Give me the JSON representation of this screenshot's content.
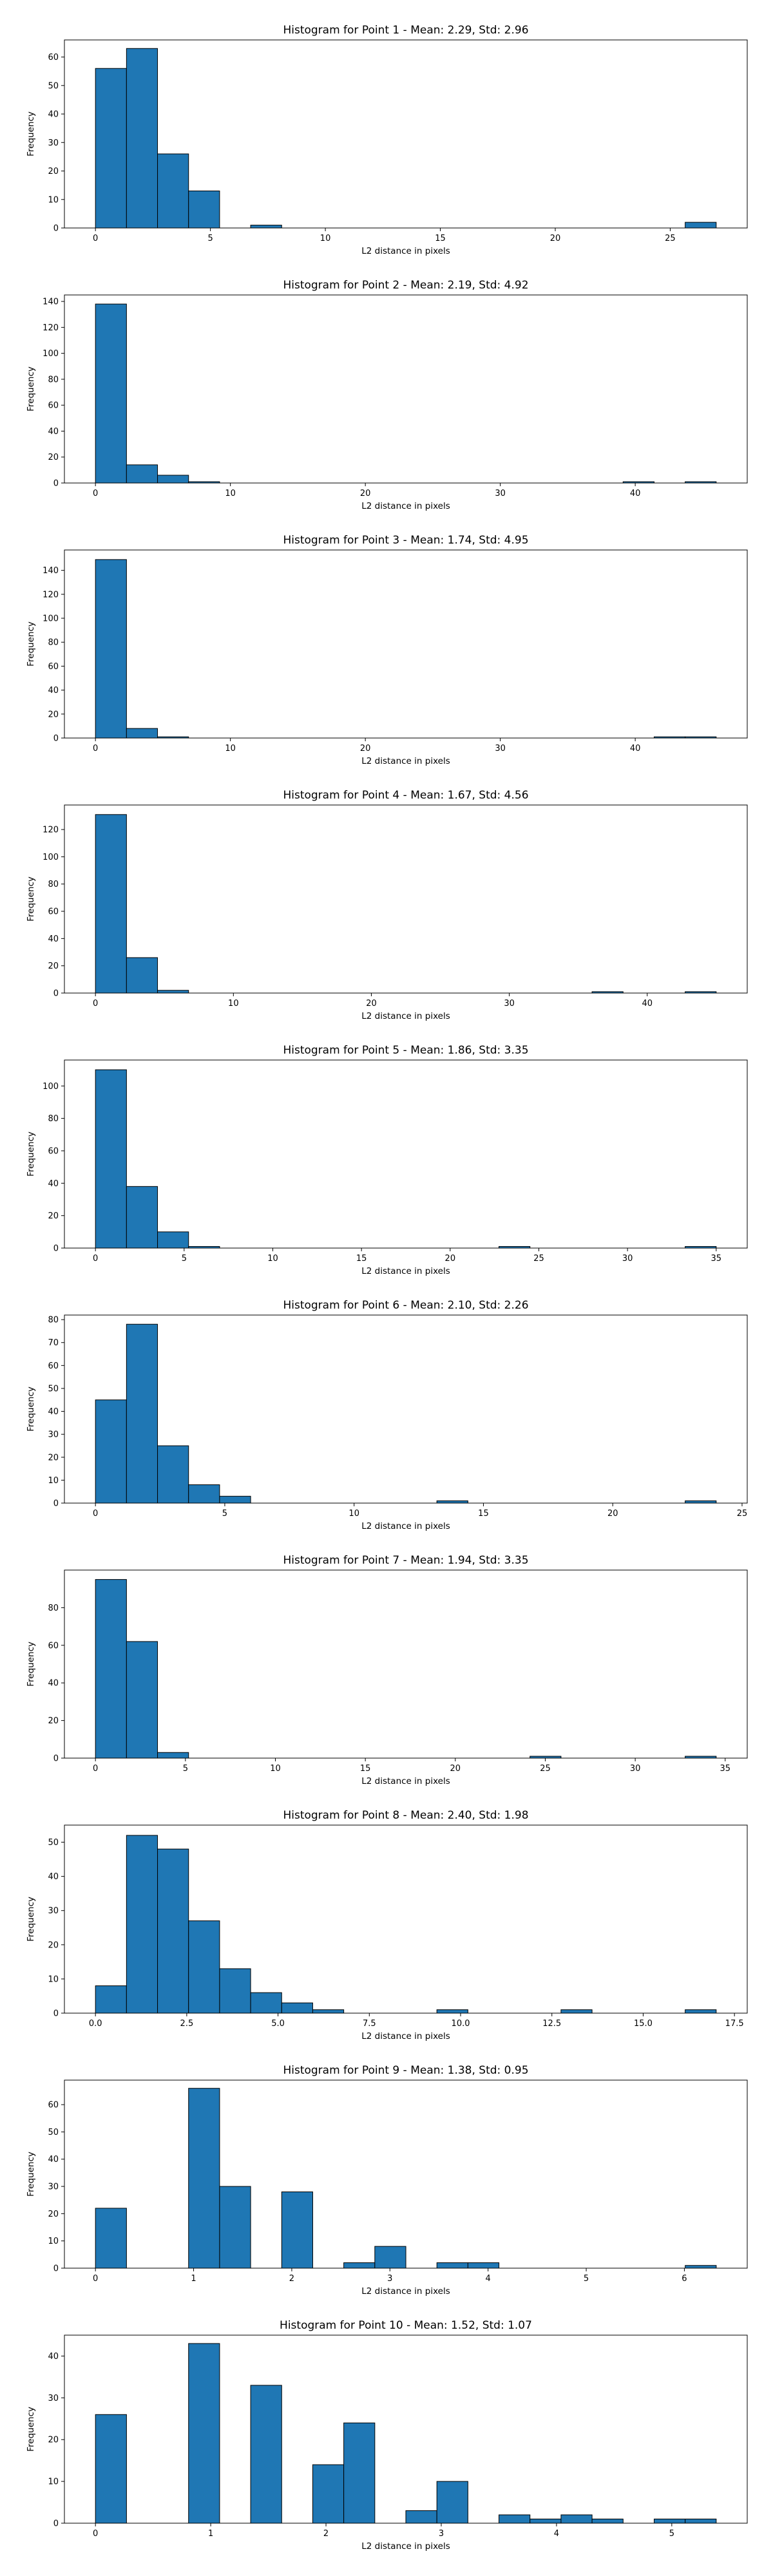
{
  "chart_data": [
    {
      "type": "bar",
      "title": "Histogram for Point 1 - Mean: 2.29, Std: 2.96",
      "xlabel": "L2 distance in pixels",
      "ylabel": "Frequency",
      "xlim": [
        -1.35,
        28.35
      ],
      "ylim": [
        0,
        66
      ],
      "xticks": [
        0,
        5,
        10,
        15,
        20,
        25
      ],
      "yticks": [
        0,
        10,
        20,
        30,
        40,
        50,
        60
      ],
      "bins": [
        {
          "x0": 0,
          "x1": 1.35,
          "count": 56
        },
        {
          "x0": 1.35,
          "x1": 2.7,
          "count": 63
        },
        {
          "x0": 2.7,
          "x1": 4.05,
          "count": 26
        },
        {
          "x0": 4.05,
          "x1": 5.4,
          "count": 13
        },
        {
          "x0": 6.75,
          "x1": 8.1,
          "count": 1
        },
        {
          "x0": 25.65,
          "x1": 27.0,
          "count": 2
        }
      ]
    },
    {
      "type": "bar",
      "title": "Histogram for Point 2 - Mean: 2.19, Std: 4.92",
      "xlabel": "L2 distance in pixels",
      "ylabel": "Frequency",
      "xlim": [
        -2.3,
        48.3
      ],
      "ylim": [
        0,
        145
      ],
      "xticks": [
        0,
        10,
        20,
        30,
        40
      ],
      "yticks": [
        0,
        20,
        40,
        60,
        80,
        100,
        120,
        140
      ],
      "bins": [
        {
          "x0": 0,
          "x1": 2.3,
          "count": 138
        },
        {
          "x0": 2.3,
          "x1": 4.6,
          "count": 14
        },
        {
          "x0": 4.6,
          "x1": 6.9,
          "count": 6
        },
        {
          "x0": 6.9,
          "x1": 9.2,
          "count": 1
        },
        {
          "x0": 39.1,
          "x1": 41.4,
          "count": 1
        },
        {
          "x0": 43.7,
          "x1": 46.0,
          "count": 1
        }
      ]
    },
    {
      "type": "bar",
      "title": "Histogram for Point 3 - Mean: 1.74, Std: 4.95",
      "xlabel": "L2 distance in pixels",
      "ylabel": "Frequency",
      "xlim": [
        -2.3,
        48.3
      ],
      "ylim": [
        0,
        157
      ],
      "xticks": [
        0,
        10,
        20,
        30,
        40
      ],
      "yticks": [
        0,
        20,
        40,
        60,
        80,
        100,
        120,
        140
      ],
      "bins": [
        {
          "x0": 0,
          "x1": 2.3,
          "count": 149
        },
        {
          "x0": 2.3,
          "x1": 4.6,
          "count": 8
        },
        {
          "x0": 4.6,
          "x1": 6.9,
          "count": 1
        },
        {
          "x0": 41.4,
          "x1": 43.7,
          "count": 1
        },
        {
          "x0": 43.7,
          "x1": 46.0,
          "count": 1
        }
      ]
    },
    {
      "type": "bar",
      "title": "Histogram for Point 4 - Mean: 1.67, Std: 4.56",
      "xlabel": "L2 distance in pixels",
      "ylabel": "Frequency",
      "xlim": [
        -2.25,
        47.25
      ],
      "ylim": [
        0,
        138
      ],
      "xticks": [
        0,
        10,
        20,
        30,
        40
      ],
      "yticks": [
        0,
        20,
        40,
        60,
        80,
        100,
        120
      ],
      "bins": [
        {
          "x0": 0,
          "x1": 2.25,
          "count": 131
        },
        {
          "x0": 2.25,
          "x1": 4.5,
          "count": 26
        },
        {
          "x0": 4.5,
          "x1": 6.75,
          "count": 2
        },
        {
          "x0": 36.0,
          "x1": 38.25,
          "count": 1
        },
        {
          "x0": 42.75,
          "x1": 45.0,
          "count": 1
        }
      ]
    },
    {
      "type": "bar",
      "title": "Histogram for Point 5 - Mean: 1.86, Std: 3.35",
      "xlabel": "L2 distance in pixels",
      "ylabel": "Frequency",
      "xlim": [
        -1.75,
        36.75
      ],
      "ylim": [
        0,
        116
      ],
      "xticks": [
        0,
        5,
        10,
        15,
        20,
        25,
        30,
        35
      ],
      "yticks": [
        0,
        20,
        40,
        60,
        80,
        100
      ],
      "bins": [
        {
          "x0": 0,
          "x1": 1.75,
          "count": 110
        },
        {
          "x0": 1.75,
          "x1": 3.5,
          "count": 38
        },
        {
          "x0": 3.5,
          "x1": 5.25,
          "count": 10
        },
        {
          "x0": 5.25,
          "x1": 7.0,
          "count": 1
        },
        {
          "x0": 22.75,
          "x1": 24.5,
          "count": 1
        },
        {
          "x0": 33.25,
          "x1": 35.0,
          "count": 1
        }
      ]
    },
    {
      "type": "bar",
      "title": "Histogram for Point 6 - Mean: 2.10, Std: 2.26",
      "xlabel": "L2 distance in pixels",
      "ylabel": "Frequency",
      "xlim": [
        -1.2,
        25.2
      ],
      "ylim": [
        0,
        82
      ],
      "xticks": [
        0,
        5,
        10,
        15,
        20,
        25
      ],
      "yticks": [
        0,
        10,
        20,
        30,
        40,
        50,
        60,
        70,
        80
      ],
      "bins": [
        {
          "x0": 0,
          "x1": 1.2,
          "count": 45
        },
        {
          "x0": 1.2,
          "x1": 2.4,
          "count": 78
        },
        {
          "x0": 2.4,
          "x1": 3.6,
          "count": 25
        },
        {
          "x0": 3.6,
          "x1": 4.8,
          "count": 8
        },
        {
          "x0": 4.8,
          "x1": 6.0,
          "count": 3
        },
        {
          "x0": 13.2,
          "x1": 14.4,
          "count": 1
        },
        {
          "x0": 22.8,
          "x1": 24.0,
          "count": 1
        }
      ]
    },
    {
      "type": "bar",
      "title": "Histogram for Point 7 - Mean: 1.94, Std: 3.35",
      "xlabel": "L2 distance in pixels",
      "ylabel": "Frequency",
      "xlim": [
        -1.725,
        36.225
      ],
      "ylim": [
        0,
        100
      ],
      "xticks": [
        0,
        5,
        10,
        15,
        20,
        25,
        30,
        35
      ],
      "yticks": [
        0,
        20,
        40,
        60,
        80
      ],
      "bins": [
        {
          "x0": 0,
          "x1": 1.725,
          "count": 95
        },
        {
          "x0": 1.725,
          "x1": 3.45,
          "count": 62
        },
        {
          "x0": 3.45,
          "x1": 5.175,
          "count": 3
        },
        {
          "x0": 24.15,
          "x1": 25.875,
          "count": 1
        },
        {
          "x0": 32.775,
          "x1": 34.5,
          "count": 1
        }
      ]
    },
    {
      "type": "bar",
      "title": "Histogram for Point 8 - Mean: 2.40, Std: 1.98",
      "xlabel": "L2 distance in pixels",
      "ylabel": "Frequency",
      "xlim": [
        -0.85,
        17.85
      ],
      "ylim": [
        0,
        55
      ],
      "xticks": [
        0.0,
        2.5,
        5.0,
        7.5,
        10.0,
        12.5,
        15.0,
        17.5
      ],
      "yticks": [
        0,
        10,
        20,
        30,
        40,
        50
      ],
      "bins": [
        {
          "x0": 0,
          "x1": 0.85,
          "count": 8
        },
        {
          "x0": 0.85,
          "x1": 1.7,
          "count": 52
        },
        {
          "x0": 1.7,
          "x1": 2.55,
          "count": 48
        },
        {
          "x0": 2.55,
          "x1": 3.4,
          "count": 27
        },
        {
          "x0": 3.4,
          "x1": 4.25,
          "count": 13
        },
        {
          "x0": 4.25,
          "x1": 5.1,
          "count": 6
        },
        {
          "x0": 5.1,
          "x1": 5.95,
          "count": 3
        },
        {
          "x0": 5.95,
          "x1": 6.8,
          "count": 1
        },
        {
          "x0": 9.35,
          "x1": 10.2,
          "count": 1
        },
        {
          "x0": 12.75,
          "x1": 13.6,
          "count": 1
        },
        {
          "x0": 16.15,
          "x1": 17.0,
          "count": 1
        }
      ]
    },
    {
      "type": "bar",
      "title": "Histogram for Point 9 - Mean: 1.38, Std: 0.95",
      "xlabel": "L2 distance in pixels",
      "ylabel": "Frequency",
      "xlim": [
        -0.3162,
        6.6403
      ],
      "ylim": [
        0,
        69
      ],
      "xticks": [
        0,
        1,
        2,
        3,
        4,
        5,
        6
      ],
      "xticklabels": [
        "0",
        "1",
        "2",
        "3",
        "4",
        "5",
        "6"
      ],
      "yticks": [
        0,
        10,
        20,
        30,
        40,
        50,
        60
      ],
      "bins": [
        {
          "x0": 0,
          "x1": 0.3162,
          "count": 22
        },
        {
          "x0": 0.9487,
          "x1": 1.2649,
          "count": 66
        },
        {
          "x0": 1.2649,
          "x1": 1.5811,
          "count": 30
        },
        {
          "x0": 1.8974,
          "x1": 2.2136,
          "count": 28
        },
        {
          "x0": 2.5298,
          "x1": 2.846,
          "count": 2
        },
        {
          "x0": 2.846,
          "x1": 3.1623,
          "count": 8
        },
        {
          "x0": 3.4785,
          "x1": 3.7947,
          "count": 2
        },
        {
          "x0": 3.7947,
          "x1": 4.1109,
          "count": 2
        },
        {
          "x0": 6.0083,
          "x1": 6.3246,
          "count": 1
        }
      ]
    },
    {
      "type": "bar",
      "title": "Histogram for Point 10 - Mean: 1.52, Std: 1.07",
      "xlabel": "L2 distance in pixels",
      "ylabel": "Frequency",
      "xlim": [
        -0.2693,
        5.6547
      ],
      "ylim": [
        0,
        45
      ],
      "xticks": [
        0,
        1,
        2,
        3,
        4,
        5
      ],
      "yticks": [
        0,
        10,
        20,
        30,
        40
      ],
      "bins": [
        {
          "x0": 0,
          "x1": 0.2693,
          "count": 26
        },
        {
          "x0": 0.8078,
          "x1": 1.0771,
          "count": 43
        },
        {
          "x0": 1.3464,
          "x1": 1.6157,
          "count": 33
        },
        {
          "x0": 1.885,
          "x1": 2.1542,
          "count": 14
        },
        {
          "x0": 2.1542,
          "x1": 2.4235,
          "count": 24
        },
        {
          "x0": 2.6928,
          "x1": 2.9621,
          "count": 3
        },
        {
          "x0": 2.9621,
          "x1": 3.2313,
          "count": 10
        },
        {
          "x0": 3.5006,
          "x1": 3.7699,
          "count": 2
        },
        {
          "x0": 3.7699,
          "x1": 4.0392,
          "count": 1
        },
        {
          "x0": 4.0392,
          "x1": 4.3085,
          "count": 2
        },
        {
          "x0": 4.3085,
          "x1": 4.5777,
          "count": 1
        },
        {
          "x0": 4.847,
          "x1": 5.1163,
          "count": 1
        },
        {
          "x0": 5.1163,
          "x1": 5.3856,
          "count": 1
        }
      ]
    }
  ]
}
